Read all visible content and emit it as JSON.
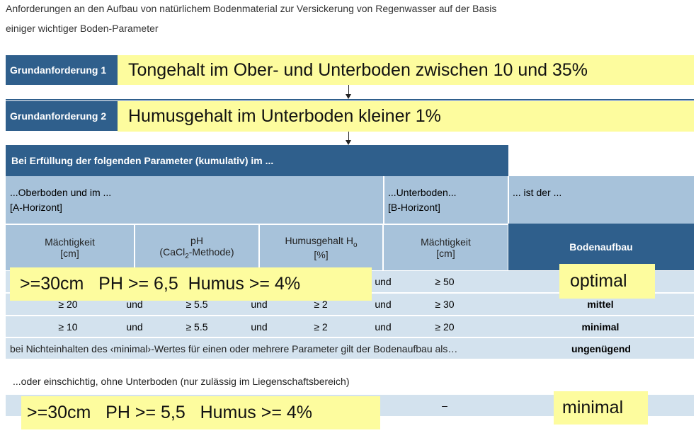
{
  "title": [
    "Anforderungen an den Aufbau von natürlichem Bodenmaterial zur Versickerung von Regenwasser auf der Basis",
    "einiger wichtiger Boden-Parameter"
  ],
  "requirements": [
    {
      "label": "Grundanforderung 1",
      "note": "Tongehalt im Ober- und Unterboden zwischen 10 und 35%"
    },
    {
      "label": "Grundanforderung 2",
      "note": "Humusgehalt im Unterboden kleiner 1%"
    }
  ],
  "table": {
    "header": "Bei Erfüllung der folgenden Parameter (kumulativ) im ...",
    "groups": [
      [
        "...Oberboden und im ...",
        "[A-Horizont]"
      ],
      [
        "...Unterboden...",
        "[B-Horizont]"
      ],
      [
        "... ist der ..."
      ]
    ],
    "columns": [
      {
        "parts": [
          "Mächtigkeit",
          "[cm]"
        ]
      },
      {
        "parts": [
          "pH",
          "(CaCl",
          "2",
          "-Methode)"
        ]
      },
      {
        "parts": [
          "Humusgehalt H",
          "o",
          "[%]"
        ]
      },
      {
        "parts": [
          "Mächtigkeit",
          "[cm]"
        ]
      },
      {
        "parts": [
          "Bodenaufbau"
        ]
      }
    ],
    "rows": [
      [
        "und",
        "≥ 50"
      ],
      [
        "≥ 20",
        "und",
        "≥ 5.5",
        "und",
        "≥ 2",
        "und",
        "≥ 30",
        "mittel"
      ],
      [
        "≥ 10",
        "und",
        "≥ 5.5",
        "und",
        "≥ 2",
        "und",
        "≥ 20",
        "minimal"
      ],
      [
        "bei Nichteinhalten des ‹minimal›-Wertes für einen oder mehrere Parameter gilt der Bodenaufbau als…",
        "ungenügend"
      ]
    ],
    "single_layer": {
      "caption": "...oder einschichtig, ohne Unterboden (nur zulässig im Liegenschaftsbereich)",
      "cell": "–"
    }
  },
  "annotations": [
    ">=30cm   PH >= 6,5  Humus >= 4%",
    "optimal",
    ">=30cm   PH >= 5,5   Humus >= 4%",
    "minimal"
  ]
}
